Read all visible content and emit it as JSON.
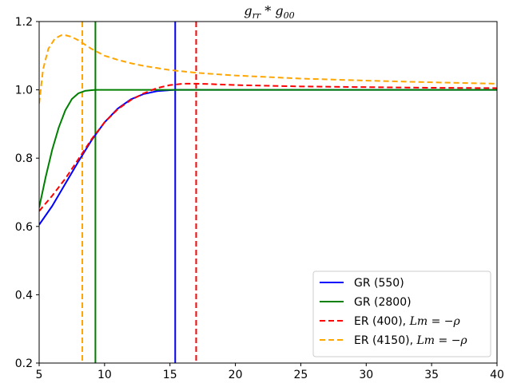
{
  "chart_data": {
    "type": "line",
    "title": "g_rr * g_00",
    "xlabel": "",
    "ylabel": "",
    "xlim": [
      5,
      40
    ],
    "ylim": [
      0.2,
      1.2
    ],
    "xticks": [
      5,
      10,
      15,
      20,
      25,
      30,
      35,
      40
    ],
    "yticks": [
      0.2,
      0.4,
      0.6,
      0.8,
      1.0,
      1.2
    ],
    "xtick_labels": [
      "5",
      "10",
      "15",
      "20",
      "25",
      "30",
      "35",
      "40"
    ],
    "ytick_labels": [
      "0.2",
      "0.4",
      "0.6",
      "0.8",
      "1.0",
      "1.2"
    ],
    "grid": false,
    "legend_position": "lower-right",
    "series": [
      {
        "name": "GR (550)",
        "color": "#0000ff",
        "dash": "solid",
        "x": [
          5,
          6,
          7,
          8,
          9,
          10,
          11,
          12,
          13,
          14,
          15,
          15.4,
          16,
          18,
          20,
          25,
          30,
          35,
          40
        ],
        "y": [
          0.605,
          0.66,
          0.725,
          0.79,
          0.852,
          0.905,
          0.945,
          0.972,
          0.988,
          0.996,
          0.999,
          1.0,
          1.0,
          1.0,
          1.0,
          1.0,
          1.0,
          1.0,
          1.0
        ]
      },
      {
        "name": "GR (2800)",
        "color": "#008000",
        "dash": "solid",
        "x": [
          5,
          5.5,
          6,
          6.5,
          7,
          7.5,
          8,
          8.5,
          9,
          9.3,
          10,
          15,
          20,
          25,
          30,
          35,
          40
        ],
        "y": [
          0.655,
          0.745,
          0.825,
          0.89,
          0.94,
          0.973,
          0.99,
          0.997,
          0.999,
          1.0,
          1.0,
          1.0,
          1.0,
          1.0,
          1.0,
          1.0,
          1.0
        ]
      },
      {
        "name": "ER (400), Lm = −ρ",
        "color": "#ff0000",
        "dash": "dashed",
        "x": [
          5,
          6,
          7,
          8,
          9,
          10,
          11,
          12,
          13,
          14,
          15,
          16,
          17,
          18,
          20,
          25,
          30,
          35,
          40
        ],
        "y": [
          0.645,
          0.69,
          0.74,
          0.797,
          0.855,
          0.905,
          0.943,
          0.97,
          0.99,
          1.005,
          1.014,
          1.018,
          1.018,
          1.017,
          1.014,
          1.01,
          1.008,
          1.006,
          1.005
        ]
      },
      {
        "name": "ER (4150), Lm = −ρ",
        "color": "#ffa500",
        "dash": "dashed",
        "x": [
          5,
          5.3,
          5.7,
          6.2,
          6.7,
          7,
          7.5,
          8,
          9,
          10,
          11,
          12,
          13,
          15,
          17,
          20,
          25,
          30,
          35,
          40
        ],
        "y": [
          0.96,
          1.06,
          1.12,
          1.15,
          1.16,
          1.16,
          1.155,
          1.145,
          1.12,
          1.1,
          1.088,
          1.078,
          1.07,
          1.058,
          1.05,
          1.042,
          1.033,
          1.027,
          1.022,
          1.018
        ]
      }
    ],
    "vlines": [
      {
        "x": 15.4,
        "color": "#0000ff",
        "dash": "solid"
      },
      {
        "x": 9.3,
        "color": "#008000",
        "dash": "solid"
      },
      {
        "x": 17.0,
        "color": "#ff0000",
        "dash": "dashed"
      },
      {
        "x": 8.3,
        "color": "#ffa500",
        "dash": "dashed"
      }
    ]
  }
}
